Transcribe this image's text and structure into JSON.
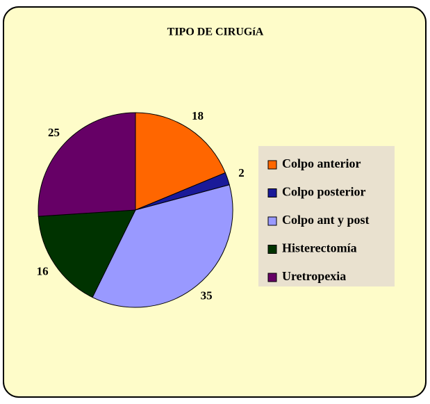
{
  "chart_data": {
    "type": "pie",
    "title": "TIPO DE CIRUGíA",
    "categories": [
      "Colpo anterior",
      "Colpo posterior",
      "Colpo ant y post",
      "Histerectomía",
      "Uretropexia"
    ],
    "values": [
      18,
      2,
      35,
      16,
      25
    ],
    "colors": [
      "#ff6600",
      "#1a1a99",
      "#9999ff",
      "#003300",
      "#660066"
    ],
    "legend": "right"
  }
}
